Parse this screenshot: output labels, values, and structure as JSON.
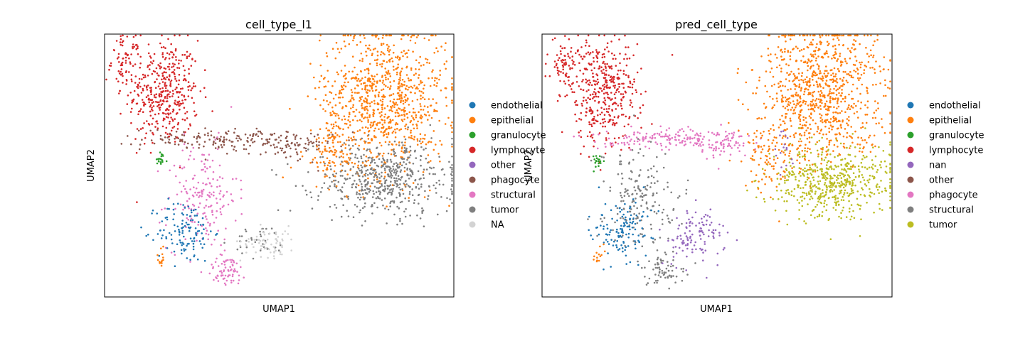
{
  "chart_data": [
    {
      "type": "scatter",
      "title": "cell_type_l1",
      "xlabel": "UMAP1",
      "ylabel": "UMAP2",
      "grid": false,
      "legend_placement": "right",
      "legend": [
        {
          "name": "endothelial",
          "color": "#1f77b4"
        },
        {
          "name": "epithelial",
          "color": "#ff7f0e"
        },
        {
          "name": "granulocyte",
          "color": "#2ca02c"
        },
        {
          "name": "lymphocyte",
          "color": "#d62728"
        },
        {
          "name": "other",
          "color": "#9467bd"
        },
        {
          "name": "phagocyte",
          "color": "#8c564b"
        },
        {
          "name": "structural",
          "color": "#e377c2"
        },
        {
          "name": "tumor",
          "color": "#7f7f7f"
        },
        {
          "name": "NA",
          "color": "#d3d3d3"
        }
      ],
      "clusters": [
        {
          "label": "lymphocyte",
          "center": [
            0.17,
            0.78
          ],
          "spread": [
            0.05,
            0.1
          ],
          "weight": 900
        },
        {
          "label": "lymphocyte",
          "center": [
            0.06,
            0.9
          ],
          "spread": [
            0.02,
            0.05
          ],
          "weight": 150
        },
        {
          "label": "granulocyte",
          "center": [
            0.16,
            0.52
          ],
          "spread": [
            0.01,
            0.015
          ],
          "weight": 40
        },
        {
          "label": "phagocyte",
          "center": [
            0.35,
            0.6
          ],
          "spread": [
            0.12,
            0.02
          ],
          "weight": 350
        },
        {
          "label": "phagocyte",
          "center": [
            0.53,
            0.57
          ],
          "spread": [
            0.06,
            0.03
          ],
          "weight": 150
        },
        {
          "label": "structural",
          "center": [
            0.28,
            0.38
          ],
          "spread": [
            0.05,
            0.1
          ],
          "weight": 400
        },
        {
          "label": "endothelial",
          "center": [
            0.23,
            0.25
          ],
          "spread": [
            0.04,
            0.06
          ],
          "weight": 280
        },
        {
          "label": "structural",
          "center": [
            0.35,
            0.1
          ],
          "spread": [
            0.03,
            0.03
          ],
          "weight": 150
        },
        {
          "label": "tumor",
          "center": [
            0.45,
            0.21
          ],
          "spread": [
            0.04,
            0.03
          ],
          "weight": 80
        },
        {
          "label": "NA",
          "center": [
            0.47,
            0.21
          ],
          "spread": [
            0.04,
            0.03
          ],
          "weight": 150
        },
        {
          "label": "epithelial",
          "center": [
            0.8,
            0.75
          ],
          "spread": [
            0.09,
            0.14
          ],
          "weight": 2000
        },
        {
          "label": "tumor",
          "center": [
            0.8,
            0.45
          ],
          "spread": [
            0.1,
            0.07
          ],
          "weight": 1200
        },
        {
          "label": "epithelial",
          "center": [
            0.65,
            0.55
          ],
          "spread": [
            0.04,
            0.07
          ],
          "weight": 200
        },
        {
          "label": "epithelial",
          "center": [
            0.16,
            0.15
          ],
          "spread": [
            0.01,
            0.02
          ],
          "weight": 30
        }
      ]
    },
    {
      "type": "scatter",
      "title": "pred_cell_type",
      "xlabel": "UMAP1",
      "ylabel": "UMAP2",
      "grid": false,
      "legend_placement": "right",
      "legend": [
        {
          "name": "endothelial",
          "color": "#1f77b4"
        },
        {
          "name": "epithelial",
          "color": "#ff7f0e"
        },
        {
          "name": "granulocyte",
          "color": "#2ca02c"
        },
        {
          "name": "lymphocyte",
          "color": "#d62728"
        },
        {
          "name": "nan",
          "color": "#9467bd"
        },
        {
          "name": "other",
          "color": "#8c564b"
        },
        {
          "name": "phagocyte",
          "color": "#e377c2"
        },
        {
          "name": "structural",
          "color": "#7f7f7f"
        },
        {
          "name": "tumor",
          "color": "#bcbd22"
        }
      ],
      "clusters": [
        {
          "label": "lymphocyte",
          "center": [
            0.17,
            0.78
          ],
          "spread": [
            0.05,
            0.1
          ],
          "weight": 900
        },
        {
          "label": "lymphocyte",
          "center": [
            0.06,
            0.9
          ],
          "spread": [
            0.02,
            0.05
          ],
          "weight": 150
        },
        {
          "label": "granulocyte",
          "center": [
            0.16,
            0.52
          ],
          "spread": [
            0.01,
            0.015
          ],
          "weight": 40
        },
        {
          "label": "phagocyte",
          "center": [
            0.35,
            0.6
          ],
          "spread": [
            0.12,
            0.02
          ],
          "weight": 350
        },
        {
          "label": "phagocyte",
          "center": [
            0.51,
            0.58
          ],
          "spread": [
            0.05,
            0.03
          ],
          "weight": 150
        },
        {
          "label": "structural",
          "center": [
            0.28,
            0.38
          ],
          "spread": [
            0.05,
            0.1
          ],
          "weight": 400
        },
        {
          "label": "endothelial",
          "center": [
            0.23,
            0.25
          ],
          "spread": [
            0.04,
            0.06
          ],
          "weight": 280
        },
        {
          "label": "structural",
          "center": [
            0.35,
            0.1
          ],
          "spread": [
            0.03,
            0.03
          ],
          "weight": 150
        },
        {
          "label": "nan",
          "center": [
            0.44,
            0.23
          ],
          "spread": [
            0.04,
            0.05
          ],
          "weight": 250
        },
        {
          "label": "epithelial",
          "center": [
            0.8,
            0.78
          ],
          "spread": [
            0.09,
            0.13
          ],
          "weight": 2000
        },
        {
          "label": "tumor",
          "center": [
            0.83,
            0.44
          ],
          "spread": [
            0.09,
            0.07
          ],
          "weight": 1200
        },
        {
          "label": "epithelial",
          "center": [
            0.65,
            0.52
          ],
          "spread": [
            0.04,
            0.07
          ],
          "weight": 200
        },
        {
          "label": "nan",
          "center": [
            0.69,
            0.55
          ],
          "spread": [
            0.01,
            0.05
          ],
          "weight": 40
        },
        {
          "label": "epithelial",
          "center": [
            0.16,
            0.15
          ],
          "spread": [
            0.01,
            0.02
          ],
          "weight": 30
        }
      ]
    }
  ]
}
